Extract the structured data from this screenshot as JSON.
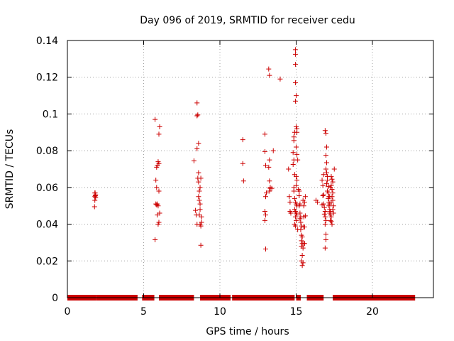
{
  "chart_data": {
    "type": "scatter",
    "title": "Day 096 of 2019, SRMTID for receiver cedu",
    "xlabel": "GPS time / hours",
    "ylabel": "SRMTID / TECUs",
    "xlim": [
      0,
      24
    ],
    "ylim": [
      0,
      0.14
    ],
    "x_ticks": [
      0,
      5,
      10,
      15,
      20
    ],
    "x_tick_labels": [
      "0",
      "5",
      "10",
      "15",
      "20"
    ],
    "y_ticks": [
      0,
      0.02,
      0.04,
      0.06,
      0.08,
      0.1,
      0.12,
      0.14
    ],
    "y_tick_labels": [
      "0",
      "0.02",
      "0.04",
      "0.06",
      "0.08",
      "0.1",
      "0.12",
      "0.14"
    ],
    "grid": true,
    "marker": "plus",
    "color": "#cc0000",
    "zero_bands": [
      [
        0.0,
        1.9
      ],
      [
        1.9,
        4.6
      ],
      [
        4.9,
        5.7
      ],
      [
        6.0,
        8.3
      ],
      [
        8.7,
        10.7
      ],
      [
        10.8,
        14.9
      ],
      [
        15.0,
        15.3
      ],
      [
        15.7,
        16.8
      ],
      [
        17.4,
        22.8
      ]
    ],
    "series": [
      {
        "name": "SRMTID",
        "points": [
          [
            1.8,
            0.057
          ],
          [
            1.85,
            0.056
          ],
          [
            1.8,
            0.055
          ],
          [
            1.85,
            0.0545
          ],
          [
            1.82,
            0.057
          ],
          [
            1.83,
            0.0555
          ],
          [
            1.8,
            0.053
          ],
          [
            1.78,
            0.0495
          ],
          [
            5.75,
            0.0315
          ],
          [
            5.75,
            0.097
          ],
          [
            5.8,
            0.064
          ],
          [
            5.85,
            0.06
          ],
          [
            5.8,
            0.051
          ],
          [
            5.85,
            0.0505
          ],
          [
            5.9,
            0.051
          ],
          [
            5.95,
            0.05
          ],
          [
            5.9,
            0.045
          ],
          [
            5.95,
            0.04
          ],
          [
            6.0,
            0.041
          ],
          [
            5.85,
            0.071
          ],
          [
            5.9,
            0.072
          ],
          [
            5.95,
            0.074
          ],
          [
            6.0,
            0.073
          ],
          [
            6.0,
            0.089
          ],
          [
            6.05,
            0.093
          ],
          [
            6.0,
            0.058
          ],
          [
            6.05,
            0.046
          ],
          [
            8.3,
            0.0745
          ],
          [
            8.4,
            0.0475
          ],
          [
            8.45,
            0.045
          ],
          [
            8.5,
            0.106
          ],
          [
            8.5,
            0.099
          ],
          [
            8.55,
            0.0995
          ],
          [
            8.5,
            0.081
          ],
          [
            8.6,
            0.084
          ],
          [
            8.6,
            0.068
          ],
          [
            8.55,
            0.065
          ],
          [
            8.6,
            0.063
          ],
          [
            8.65,
            0.058
          ],
          [
            8.6,
            0.055
          ],
          [
            8.65,
            0.053
          ],
          [
            8.7,
            0.051
          ],
          [
            8.7,
            0.06
          ],
          [
            8.75,
            0.065
          ],
          [
            8.65,
            0.045
          ],
          [
            8.7,
            0.04
          ],
          [
            8.75,
            0.039
          ],
          [
            8.8,
            0.044
          ],
          [
            8.75,
            0.0285
          ],
          [
            8.5,
            0.04
          ],
          [
            8.7,
            0.048
          ],
          [
            8.8,
            0.041
          ],
          [
            11.5,
            0.086
          ],
          [
            11.5,
            0.073
          ],
          [
            11.55,
            0.0635
          ],
          [
            12.95,
            0.0795
          ],
          [
            12.95,
            0.089
          ],
          [
            13.0,
            0.072
          ],
          [
            13.05,
            0.057
          ],
          [
            13.0,
            0.055
          ],
          [
            12.95,
            0.047
          ],
          [
            13.0,
            0.045
          ],
          [
            12.95,
            0.042
          ],
          [
            13.0,
            0.0265
          ],
          [
            13.2,
            0.1245
          ],
          [
            13.25,
            0.121
          ],
          [
            13.25,
            0.075
          ],
          [
            13.2,
            0.071
          ],
          [
            13.25,
            0.0635
          ],
          [
            13.3,
            0.06
          ],
          [
            13.25,
            0.058
          ],
          [
            13.4,
            0.0595
          ],
          [
            13.5,
            0.08
          ],
          [
            13.3,
            0.0595
          ],
          [
            13.95,
            0.119
          ],
          [
            14.5,
            0.07
          ],
          [
            14.55,
            0.055
          ],
          [
            14.6,
            0.052
          ],
          [
            14.6,
            0.047
          ],
          [
            14.65,
            0.046
          ],
          [
            14.8,
            0.0725
          ],
          [
            14.8,
            0.079
          ],
          [
            14.85,
            0.0855
          ],
          [
            14.85,
            0.0875
          ],
          [
            14.9,
            0.09
          ],
          [
            14.85,
            0.075
          ],
          [
            14.95,
            0.135
          ],
          [
            14.95,
            0.1325
          ],
          [
            14.95,
            0.127
          ],
          [
            14.95,
            0.117
          ],
          [
            15.0,
            0.11
          ],
          [
            14.95,
            0.107
          ],
          [
            15.0,
            0.093
          ],
          [
            15.05,
            0.092
          ],
          [
            15.05,
            0.09
          ],
          [
            15.0,
            0.082
          ],
          [
            15.05,
            0.078
          ],
          [
            15.1,
            0.075
          ],
          [
            14.9,
            0.067
          ],
          [
            15.0,
            0.066
          ],
          [
            15.05,
            0.064
          ],
          [
            14.85,
            0.06
          ],
          [
            15.0,
            0.061
          ],
          [
            14.85,
            0.058
          ],
          [
            14.9,
            0.054
          ],
          [
            14.95,
            0.052
          ],
          [
            15.0,
            0.051
          ],
          [
            15.05,
            0.05
          ],
          [
            14.9,
            0.048
          ],
          [
            14.95,
            0.047
          ],
          [
            15.0,
            0.046
          ],
          [
            15.05,
            0.045
          ],
          [
            14.95,
            0.044
          ],
          [
            15.0,
            0.042
          ],
          [
            14.9,
            0.04
          ],
          [
            14.95,
            0.039
          ],
          [
            15.1,
            0.037
          ],
          [
            15.15,
            0.059
          ],
          [
            15.2,
            0.058
          ],
          [
            15.2,
            0.0555
          ],
          [
            15.25,
            0.051
          ],
          [
            15.2,
            0.05
          ],
          [
            15.25,
            0.046
          ],
          [
            15.3,
            0.044
          ],
          [
            15.25,
            0.043
          ],
          [
            15.3,
            0.041
          ],
          [
            15.35,
            0.039
          ],
          [
            15.3,
            0.037
          ],
          [
            15.35,
            0.034
          ],
          [
            15.4,
            0.033
          ],
          [
            15.35,
            0.031
          ],
          [
            15.4,
            0.0295
          ],
          [
            15.35,
            0.028
          ],
          [
            15.45,
            0.027
          ],
          [
            15.4,
            0.023
          ],
          [
            15.35,
            0.02
          ],
          [
            15.4,
            0.0175
          ],
          [
            15.45,
            0.019
          ],
          [
            15.5,
            0.0385
          ],
          [
            15.55,
            0.0385
          ],
          [
            15.5,
            0.044
          ],
          [
            15.6,
            0.0445
          ],
          [
            15.45,
            0.053
          ],
          [
            15.5,
            0.05
          ],
          [
            15.55,
            0.052
          ],
          [
            15.6,
            0.055
          ],
          [
            15.5,
            0.0295
          ],
          [
            15.55,
            0.0295
          ],
          [
            16.3,
            0.053
          ],
          [
            16.4,
            0.052
          ],
          [
            16.7,
            0.064
          ],
          [
            16.75,
            0.061
          ],
          [
            16.8,
            0.067
          ],
          [
            16.75,
            0.0555
          ],
          [
            16.8,
            0.056
          ],
          [
            16.7,
            0.0505
          ],
          [
            16.8,
            0.051
          ],
          [
            16.85,
            0.049
          ],
          [
            16.9,
            0.047
          ],
          [
            16.85,
            0.0455
          ],
          [
            16.9,
            0.044
          ],
          [
            16.95,
            0.042
          ],
          [
            16.9,
            0.04
          ],
          [
            16.95,
            0.0345
          ],
          [
            16.95,
            0.0315
          ],
          [
            16.9,
            0.027
          ],
          [
            16.9,
            0.091
          ],
          [
            16.95,
            0.0895
          ],
          [
            17.0,
            0.082
          ],
          [
            16.95,
            0.0775
          ],
          [
            17.0,
            0.0735
          ],
          [
            16.95,
            0.07
          ],
          [
            17.0,
            0.068
          ],
          [
            17.05,
            0.066
          ],
          [
            17.05,
            0.064
          ],
          [
            17.0,
            0.062
          ],
          [
            17.1,
            0.0605
          ],
          [
            17.05,
            0.058
          ],
          [
            17.1,
            0.057
          ],
          [
            17.15,
            0.055
          ],
          [
            17.1,
            0.054
          ],
          [
            17.15,
            0.052
          ],
          [
            17.2,
            0.051
          ],
          [
            17.15,
            0.05
          ],
          [
            17.2,
            0.048
          ],
          [
            17.25,
            0.047
          ],
          [
            17.2,
            0.046
          ],
          [
            17.25,
            0.045
          ],
          [
            17.3,
            0.044
          ],
          [
            17.25,
            0.042
          ],
          [
            17.3,
            0.0415
          ],
          [
            17.35,
            0.04
          ],
          [
            17.3,
            0.066
          ],
          [
            17.35,
            0.0645
          ],
          [
            17.4,
            0.063
          ],
          [
            17.3,
            0.061
          ],
          [
            17.35,
            0.059
          ],
          [
            17.4,
            0.057
          ],
          [
            17.35,
            0.055
          ],
          [
            17.4,
            0.053
          ],
          [
            17.45,
            0.05
          ],
          [
            17.4,
            0.048
          ],
          [
            17.45,
            0.046
          ],
          [
            17.5,
            0.07
          ],
          [
            17.2,
            0.055
          ],
          [
            17.25,
            0.06
          ],
          [
            17.3,
            0.052
          ]
        ]
      }
    ]
  }
}
